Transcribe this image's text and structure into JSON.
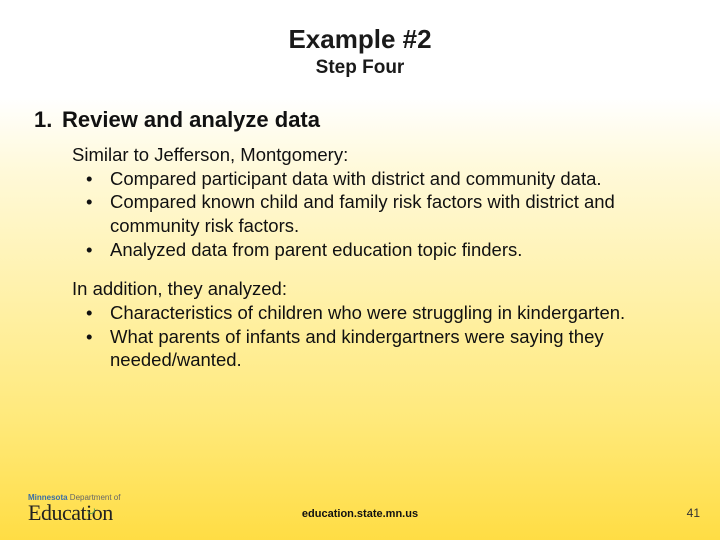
{
  "title": "Example #2",
  "subtitle": "Step Four",
  "heading": {
    "number": "1.",
    "text": "Review and analyze data"
  },
  "section1": {
    "intro": "Similar to Jefferson, Montgomery:",
    "bullets": [
      "Compared participant data with district and community data.",
      "Compared known child and family risk factors with district and community risk factors.",
      "Analyzed data from parent education topic finders."
    ]
  },
  "section2": {
    "intro": "In addition, they analyzed:",
    "bullets": [
      "Characteristics of children who were struggling in kindergarten.",
      "What parents of infants and kindergartners were saying they needed/wanted."
    ]
  },
  "logo": {
    "top_prefix": "Minnesota",
    "top_suffix": " Department of",
    "main": "Education"
  },
  "footer_url": "education.state.mn.us",
  "page_number": "41",
  "bullet_mark": "•"
}
